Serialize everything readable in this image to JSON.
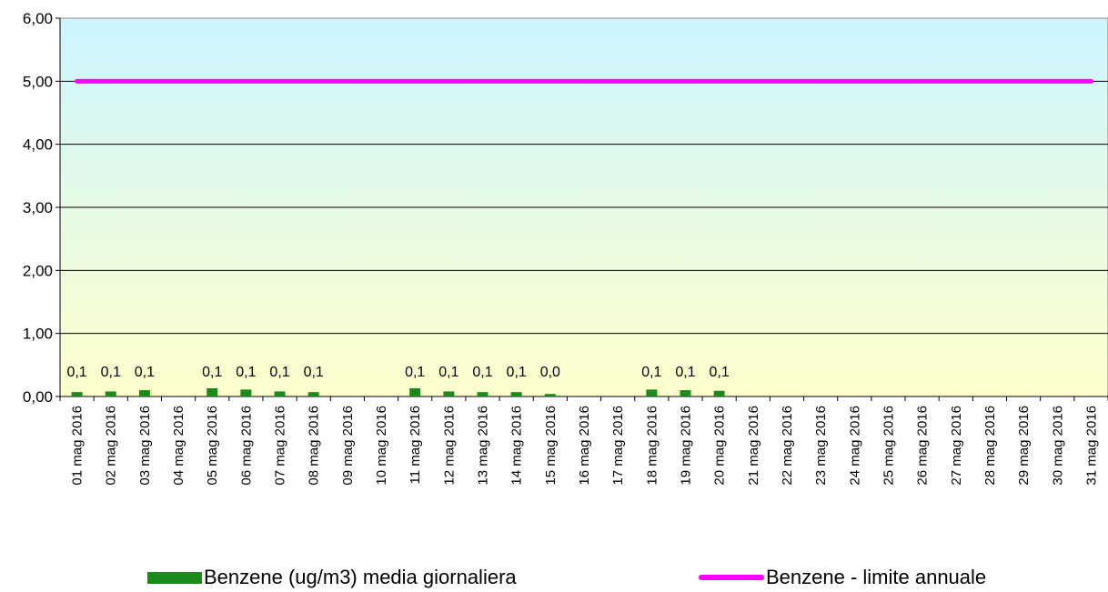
{
  "chart_data": {
    "type": "bar",
    "categories": [
      "01 mag 2016",
      "02 mag 2016",
      "03 mag 2016",
      "04 mag 2016",
      "05 mag 2016",
      "06 mag 2016",
      "07 mag 2016",
      "08 mag 2016",
      "09 mag 2016",
      "10 mag 2016",
      "11 mag 2016",
      "12 mag 2016",
      "13 mag 2016",
      "14 mag 2016",
      "15 mag 2016",
      "16 mag 2016",
      "17 mag 2016",
      "18 mag 2016",
      "19 mag 2016",
      "20 mag 2016",
      "21 mag 2016",
      "22 mag 2016",
      "23 mag 2016",
      "24 mag 2016",
      "25 mag 2016",
      "26 mag 2016",
      "27 mag 2016",
      "28 mag 2016",
      "29 mag 2016",
      "30 mag 2016",
      "31 mag 2016"
    ],
    "series": [
      {
        "name": "Benzene (ug/m3) media giornaliera",
        "type": "bar",
        "color": "#1a8a1a",
        "values": [
          0.07,
          0.08,
          0.1,
          null,
          0.13,
          0.11,
          0.08,
          0.07,
          null,
          null,
          0.13,
          0.08,
          0.07,
          0.07,
          0.04,
          null,
          null,
          0.11,
          0.1,
          0.09,
          null,
          null,
          null,
          null,
          null,
          null,
          null,
          null,
          null,
          null,
          null
        ],
        "labels": [
          "0,1",
          "0,1",
          "0,1",
          "",
          "0,1",
          "0,1",
          "0,1",
          "0,1",
          "",
          "",
          "0,1",
          "0,1",
          "0,1",
          "0,1",
          "0,0",
          "",
          "",
          "0,1",
          "0,1",
          "0,1",
          "",
          "",
          "",
          "",
          "",
          "",
          "",
          "",
          "",
          "",
          ""
        ]
      },
      {
        "name": "Benzene - limite annuale",
        "type": "line",
        "color": "#ff00ff",
        "values": [
          5,
          5,
          5,
          5,
          5,
          5,
          5,
          5,
          5,
          5,
          5,
          5,
          5,
          5,
          5,
          5,
          5,
          5,
          5,
          5,
          5,
          5,
          5,
          5,
          5,
          5,
          5,
          5,
          5,
          5,
          5
        ]
      }
    ],
    "ylim": [
      0,
      6
    ],
    "yticks": [
      "0,00",
      "1,00",
      "2,00",
      "3,00",
      "4,00",
      "5,00",
      "6,00"
    ],
    "grid": true,
    "background_gradient": {
      "top": "#ccf5ff",
      "bottom": "#ffffcc"
    },
    "legend_position": "bottom",
    "title": "",
    "xlabel": "",
    "ylabel": ""
  },
  "legend": {
    "bar_label": "Benzene (ug/m3) media giornaliera",
    "line_label": "Benzene - limite annuale"
  }
}
